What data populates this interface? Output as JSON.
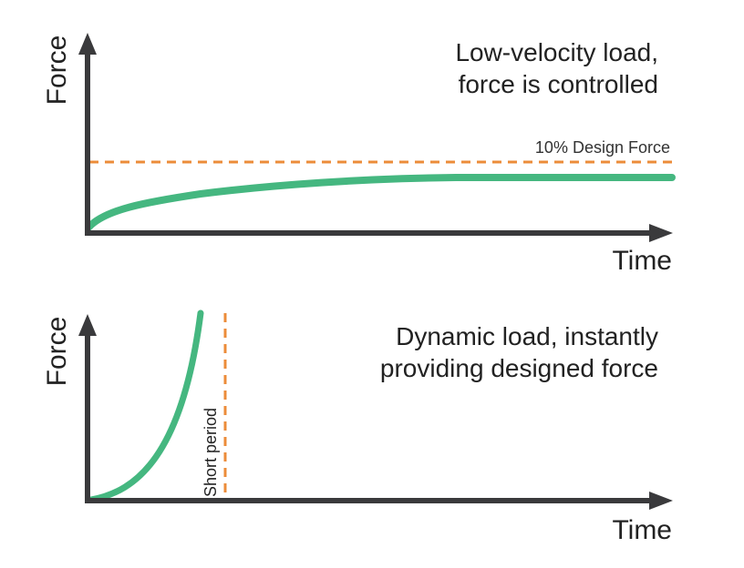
{
  "colors": {
    "axis": "#3a3a3c",
    "curve": "#45b780",
    "dashed": "#ec8c3a",
    "text": "#222222"
  },
  "top_panel": {
    "y_axis_label": "Force",
    "x_axis_label": "Time",
    "caption_line1": "Low-velocity load,",
    "caption_line2": "force is controlled",
    "threshold_label": "10% Design Force"
  },
  "bottom_panel": {
    "y_axis_label": "Force",
    "x_axis_label": "Time",
    "caption_line1": "Dynamic load, instantly",
    "caption_line2": "providing designed force",
    "period_label": "Short period"
  }
}
